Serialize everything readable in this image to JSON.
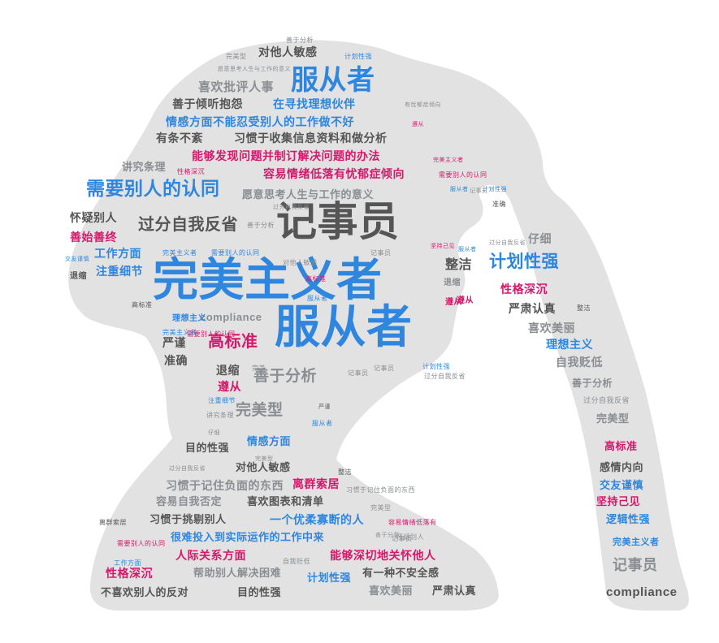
{
  "palette": {
    "background": "#ffffff",
    "silhouette": "#e2e2e2",
    "blue": "#2e86de",
    "gray": "#8a8e92",
    "dark": "#555555",
    "magenta": "#d5186b"
  },
  "words": [
    {
      "text": "完美主义者",
      "color": "blue"
    },
    {
      "text": "服从者",
      "color": "blue"
    },
    {
      "text": "记事员",
      "color": "dark"
    },
    {
      "text": "服从者",
      "color": "blue"
    },
    {
      "text": "需要别人的认同",
      "color": "blue"
    },
    {
      "text": "过分自我反省",
      "color": "dark"
    },
    {
      "text": "计划性强",
      "color": "blue"
    },
    {
      "text": "高标准",
      "color": "magenta"
    },
    {
      "text": "善于分析",
      "color": "gray"
    },
    {
      "text": "完美型",
      "color": "gray"
    },
    {
      "text": "喜欢批评人事",
      "color": "gray"
    },
    {
      "text": "对他人敏感",
      "color": "dark"
    },
    {
      "text": "善于倾听抱怨",
      "color": "dark"
    },
    {
      "text": "在寻找理想伙伴",
      "color": "blue"
    },
    {
      "text": "情感方面不能忍受别人的工作做不好",
      "color": "blue"
    },
    {
      "text": "有条不紊",
      "color": "dark"
    },
    {
      "text": "习惯于收集信息资料和做分析",
      "color": "dark"
    },
    {
      "text": "能够发现问题并制订解决问题的办法",
      "color": "magenta"
    },
    {
      "text": "讲究条理",
      "color": "gray"
    },
    {
      "text": "容易情绪低落有忧郁症倾向",
      "color": "magenta"
    },
    {
      "text": "愿意思考人生与工作的意义",
      "color": "gray"
    },
    {
      "text": "怀疑别人",
      "color": "dark"
    },
    {
      "text": "善始善终",
      "color": "magenta"
    },
    {
      "text": "工作方面",
      "color": "blue"
    },
    {
      "text": "注重细节",
      "color": "blue"
    },
    {
      "text": "整洁",
      "color": "dark"
    },
    {
      "text": "性格深沉",
      "color": "magenta"
    },
    {
      "text": "严肃认真",
      "color": "dark"
    },
    {
      "text": "喜欢美丽",
      "color": "gray"
    },
    {
      "text": "理想主义",
      "color": "blue"
    },
    {
      "text": "自我贬低",
      "color": "gray"
    },
    {
      "text": "仔细",
      "color": "gray"
    },
    {
      "text": "compliance",
      "color": "gray"
    },
    {
      "text": "严谨",
      "color": "dark"
    },
    {
      "text": "准确",
      "color": "dark"
    },
    {
      "text": "退缩",
      "color": "dark"
    },
    {
      "text": "遵从",
      "color": "magenta"
    },
    {
      "text": "善于分析",
      "color": "gray"
    },
    {
      "text": "过分自我反省",
      "color": "gray"
    },
    {
      "text": "完美型",
      "color": "gray"
    },
    {
      "text": "高标准",
      "color": "magenta"
    },
    {
      "text": "感情内向",
      "color": "dark"
    },
    {
      "text": "交友谨慎",
      "color": "blue"
    },
    {
      "text": "坚持己见",
      "color": "magenta"
    },
    {
      "text": "逻辑性强",
      "color": "blue"
    },
    {
      "text": "完美主义者",
      "color": "blue"
    },
    {
      "text": "记事员",
      "color": "gray"
    },
    {
      "text": "compliance",
      "color": "dark"
    },
    {
      "text": "目的性强",
      "color": "dark"
    },
    {
      "text": "情感方面",
      "color": "blue"
    },
    {
      "text": "对他人敏感",
      "color": "dark"
    },
    {
      "text": "习惯于记住负面的东西",
      "color": "gray"
    },
    {
      "text": "离群索居",
      "color": "magenta"
    },
    {
      "text": "容易自我否定",
      "color": "gray"
    },
    {
      "text": "喜欢图表和清单",
      "color": "dark"
    },
    {
      "text": "习惯于挑剔别人",
      "color": "dark"
    },
    {
      "text": "一个优柔寡断的人",
      "color": "blue"
    },
    {
      "text": "很难投入到实际运作的工作中来",
      "color": "blue"
    },
    {
      "text": "人际关系方面",
      "color": "magenta"
    },
    {
      "text": "能够深切地关怀他人",
      "color": "magenta"
    },
    {
      "text": "性格深沉",
      "color": "magenta"
    },
    {
      "text": "帮助别人解决困难",
      "color": "gray"
    },
    {
      "text": "计划性强",
      "color": "blue"
    },
    {
      "text": "有一种不安全感",
      "color": "dark"
    },
    {
      "text": "不喜欢别人的反对",
      "color": "dark"
    },
    {
      "text": "目的性强",
      "color": "dark"
    },
    {
      "text": "喜欢美丽",
      "color": "gray"
    },
    {
      "text": "严肃认真",
      "color": "dark"
    },
    {
      "text": "善于分析",
      "color": "gray"
    },
    {
      "text": "完美型",
      "color": "gray"
    },
    {
      "text": "计划性强",
      "color": "blue"
    },
    {
      "text": "愿意思考人生与工作的意义",
      "color": "gray"
    },
    {
      "text": "有忧郁症倾向",
      "color": "gray"
    },
    {
      "text": "遵从",
      "color": "magenta"
    },
    {
      "text": "完美主义者",
      "color": "magenta"
    },
    {
      "text": "需要别人的认同",
      "color": "magenta"
    },
    {
      "text": "性格深沉",
      "color": "magenta"
    },
    {
      "text": "计划性强",
      "color": "blue"
    },
    {
      "text": "记事员",
      "color": "gray"
    },
    {
      "text": "服从者",
      "color": "blue"
    },
    {
      "text": "准确",
      "color": "dark"
    },
    {
      "text": "过分自我反省",
      "color": "gray"
    },
    {
      "text": "善于分析",
      "color": "gray"
    },
    {
      "text": "过分自我反省",
      "color": "gray"
    },
    {
      "text": "记事员",
      "color": "gray"
    },
    {
      "text": "服从者",
      "color": "blue"
    },
    {
      "text": "完美主义者",
      "color": "blue"
    },
    {
      "text": "需要别人的认同",
      "color": "blue"
    },
    {
      "text": "交友谨慎",
      "color": "blue"
    },
    {
      "text": "退缩",
      "color": "dark"
    },
    {
      "text": "坚持己见",
      "color": "magenta"
    },
    {
      "text": "高标准",
      "color": "magenta"
    },
    {
      "text": "服从者",
      "color": "blue"
    },
    {
      "text": "高标准",
      "color": "dark"
    },
    {
      "text": "理想主义",
      "color": "blue"
    },
    {
      "text": "完美主义者",
      "color": "blue"
    },
    {
      "text": "需要别人的认同",
      "color": "magenta"
    },
    {
      "text": "完美",
      "color": "gray"
    },
    {
      "text": "遵从",
      "color": "magenta"
    },
    {
      "text": "对他人敏感",
      "color": "gray"
    },
    {
      "text": "退缩",
      "color": "gray"
    },
    {
      "text": "遵从",
      "color": "magenta"
    },
    {
      "text": "整洁",
      "color": "dark"
    },
    {
      "text": "记事员",
      "color": "gray"
    },
    {
      "text": "过分自我反省",
      "color": "gray"
    },
    {
      "text": "完美型",
      "color": "gray"
    },
    {
      "text": "整洁",
      "color": "dark"
    },
    {
      "text": "记事员",
      "color": "gray"
    },
    {
      "text": "计划性强",
      "color": "blue"
    },
    {
      "text": "注重细节",
      "color": "blue"
    },
    {
      "text": "严谨",
      "color": "dark"
    },
    {
      "text": "讲究条理",
      "color": "gray"
    },
    {
      "text": "仔细",
      "color": "gray"
    },
    {
      "text": "服从者",
      "color": "blue"
    },
    {
      "text": "过分自我反省",
      "color": "gray"
    },
    {
      "text": "习惯于记住负面的东西",
      "color": "gray"
    },
    {
      "text": "完美型",
      "color": "gray"
    },
    {
      "text": "容易情绪低落有",
      "color": "magenta"
    },
    {
      "text": "怀疑别人",
      "color": "gray"
    },
    {
      "text": "善于分析",
      "color": "gray"
    },
    {
      "text": "离群索居",
      "color": "dark"
    },
    {
      "text": "需要别人的认同",
      "color": "magenta"
    },
    {
      "text": "工作方面",
      "color": "blue"
    },
    {
      "text": "自我贬低",
      "color": "gray"
    },
    {
      "text": "记事员",
      "color": "gray"
    }
  ]
}
